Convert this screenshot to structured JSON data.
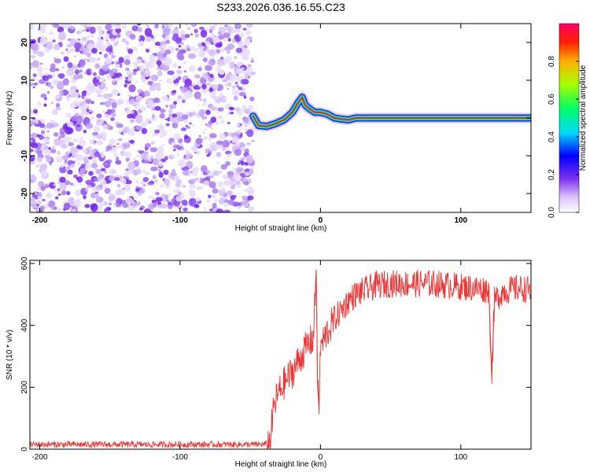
{
  "chart_data": [
    {
      "type": "heatmap",
      "title": "S233.2026.036.16.55.C23",
      "xlabel": "Height of straight line (km)",
      "ylabel": "Frequency (Hz)",
      "xlim": [
        -207,
        150
      ],
      "ylim": [
        -25,
        25
      ],
      "xticks": [
        -200,
        -100,
        0,
        100
      ],
      "yticks": [
        -20,
        -10,
        0,
        10,
        20
      ],
      "noise_region_x": [
        -207,
        -48
      ],
      "ridge": {
        "x": [
          -48,
          -44,
          -38,
          -32,
          -26,
          -20,
          -16,
          -13,
          -11,
          -8,
          -4,
          0,
          5,
          10,
          15,
          20,
          25,
          30,
          60,
          90,
          120,
          150
        ],
        "frequency": [
          0.5,
          -2,
          -2.2,
          -1.5,
          -0.5,
          1.5,
          4,
          5.5,
          3.5,
          2.5,
          1.5,
          1.5,
          1,
          0,
          -0.3,
          -0.5,
          0,
          0,
          0,
          0,
          0,
          0
        ]
      },
      "colorbar": {
        "label": "Normalized spectral amplitude",
        "range": [
          0,
          1
        ],
        "ticks": [
          "0.0",
          "0.2",
          "0.4",
          "0.6",
          "0.8"
        ]
      }
    },
    {
      "type": "line",
      "xlabel": "Height of straight line (km)",
      "ylabel": "SNR (10 * v/v)",
      "xlim": [
        -207,
        150
      ],
      "ylim": [
        0,
        610
      ],
      "xticks": [
        -200,
        -100,
        0,
        100
      ],
      "yticks": [
        0,
        200,
        400,
        600
      ],
      "color": "#ee3333",
      "series": [
        {
          "name": "SNR",
          "x": [
            -207,
            -180,
            -150,
            -120,
            -90,
            -60,
            -40,
            -36,
            -33,
            -30,
            -25,
            -20,
            -15,
            -10,
            -5,
            -3,
            -2,
            -1,
            0,
            5,
            10,
            15,
            20,
            25,
            30,
            35,
            40,
            50,
            60,
            70,
            80,
            90,
            100,
            110,
            120,
            122,
            124,
            130,
            140,
            150
          ],
          "values": [
            15,
            15,
            15,
            15,
            15,
            15,
            15,
            25,
            140,
            180,
            220,
            250,
            290,
            330,
            360,
            580,
            200,
            130,
            330,
            380,
            420,
            450,
            480,
            500,
            510,
            520,
            530,
            535,
            535,
            535,
            535,
            530,
            525,
            520,
            515,
            235,
            480,
            510,
            520,
            515
          ]
        }
      ]
    }
  ]
}
